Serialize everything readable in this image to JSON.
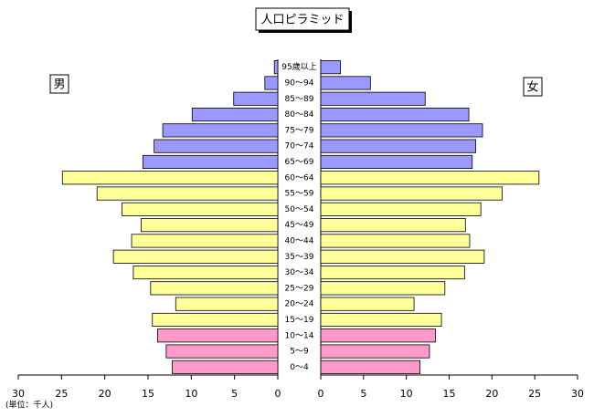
{
  "chart_data": {
    "type": "pyramid",
    "title": "人口ピラミッド",
    "unit_label": "(単位：千人)",
    "categories": [
      "0～4",
      "5～9",
      "10～14",
      "15～19",
      "20～24",
      "25～29",
      "30～34",
      "35～39",
      "40～44",
      "45～49",
      "50～54",
      "55～59",
      "60～64",
      "65～69",
      "70～74",
      "75～79",
      "80～84",
      "85～89",
      "90～94",
      "95歳以上"
    ],
    "category_colors": [
      "#ff99cc",
      "#ff99cc",
      "#ff99cc",
      "#ffff99",
      "#ffff99",
      "#ffff99",
      "#ffff99",
      "#ffff99",
      "#ffff99",
      "#ffff99",
      "#ffff99",
      "#ffff99",
      "#ffff99",
      "#9999ff",
      "#9999ff",
      "#9999ff",
      "#9999ff",
      "#9999ff",
      "#9999ff",
      "#9999ff"
    ],
    "series": [
      {
        "name": "男",
        "side": "left",
        "values": [
          12.2,
          12.9,
          13.9,
          14.5,
          11.8,
          14.7,
          16.7,
          19.0,
          16.9,
          15.8,
          18.0,
          20.9,
          24.9,
          15.6,
          14.3,
          13.3,
          9.9,
          5.1,
          1.5,
          0.4
        ]
      },
      {
        "name": "女",
        "side": "right",
        "values": [
          11.6,
          12.7,
          13.4,
          14.1,
          10.9,
          14.5,
          16.8,
          19.1,
          17.4,
          16.9,
          18.7,
          21.2,
          25.5,
          17.7,
          18.1,
          18.9,
          17.3,
          12.2,
          5.8,
          2.3
        ]
      }
    ],
    "xlim": [
      0,
      30
    ],
    "xticks": [
      0,
      5,
      10,
      15,
      20,
      25,
      30
    ]
  }
}
